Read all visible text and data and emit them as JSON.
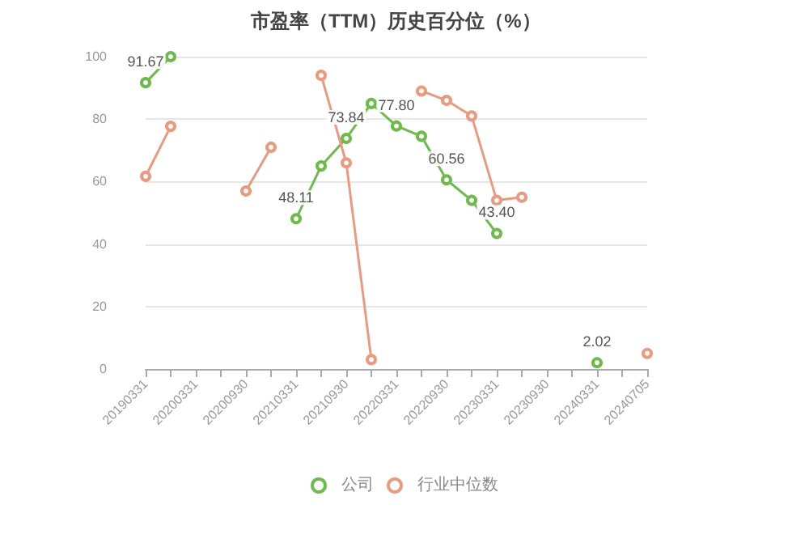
{
  "chart_data": {
    "type": "line",
    "title": "市盈率（TTM）历史百分位（%）",
    "categories": [
      "20190331",
      null,
      "20200331",
      null,
      "20200930",
      null,
      "20210331",
      null,
      "20210930",
      null,
      "20220331",
      null,
      "20220930",
      null,
      "20230331",
      null,
      "20230930",
      null,
      "20240331",
      null,
      "20240705"
    ],
    "series": [
      {
        "name": "公司",
        "color": "#6dbb4a",
        "values": [
          91.67,
          100,
          null,
          null,
          null,
          null,
          48.11,
          65,
          73.84,
          85,
          77.8,
          74.5,
          60.56,
          54,
          43.4,
          null,
          null,
          null,
          2.02,
          null,
          null
        ],
        "value_labels": [
          "91.67",
          null,
          null,
          null,
          null,
          null,
          "48.11",
          null,
          "73.84",
          null,
          "77.80",
          null,
          "60.56",
          null,
          "43.40",
          null,
          null,
          null,
          "2.02",
          null,
          null
        ]
      },
      {
        "name": "行业中位数",
        "color": "#eb9a7e",
        "values": [
          61.7,
          77.7,
          null,
          null,
          57,
          71,
          null,
          94,
          66,
          3,
          null,
          89,
          86,
          81,
          54,
          55,
          null,
          null,
          null,
          null,
          5
        ]
      }
    ],
    "ylim": [
      0,
      100
    ],
    "yticks": [
      0,
      20,
      40,
      60,
      80,
      100
    ],
    "grid": "y",
    "legend": "bottom",
    "marker": "circle",
    "line_style": "solid"
  }
}
